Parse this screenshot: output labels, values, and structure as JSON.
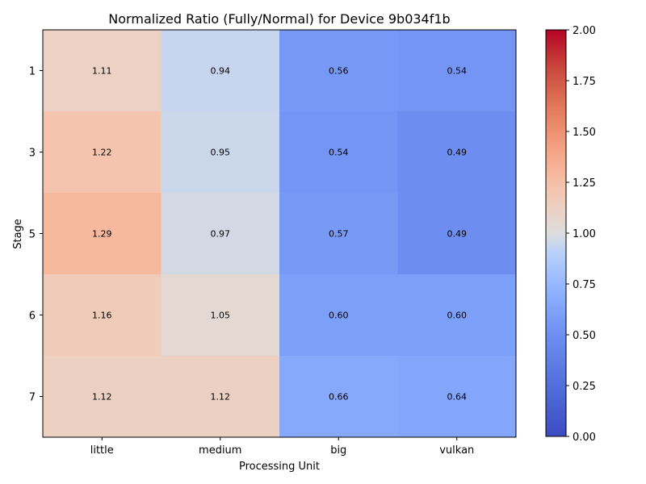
{
  "chart_data": {
    "type": "heatmap",
    "title": "Normalized Ratio (Fully/Normal) for Device 9b034f1b",
    "xlabel": "Processing Unit",
    "ylabel": "Stage",
    "x_categories": [
      "little",
      "medium",
      "big",
      "vulkan"
    ],
    "y_categories": [
      "1",
      "3",
      "5",
      "6",
      "7"
    ],
    "values": [
      [
        1.11,
        0.94,
        0.56,
        0.54
      ],
      [
        1.22,
        0.95,
        0.54,
        0.49
      ],
      [
        1.29,
        0.97,
        0.57,
        0.49
      ],
      [
        1.16,
        1.05,
        0.6,
        0.6
      ],
      [
        1.12,
        1.12,
        0.66,
        0.64
      ]
    ],
    "value_labels": [
      [
        "1.11",
        "0.94",
        "0.56",
        "0.54"
      ],
      [
        "1.22",
        "0.95",
        "0.54",
        "0.49"
      ],
      [
        "1.29",
        "0.97",
        "0.57",
        "0.49"
      ],
      [
        "1.16",
        "1.05",
        "0.60",
        "0.60"
      ],
      [
        "1.12",
        "1.12",
        "0.66",
        "0.64"
      ]
    ],
    "colorbar": {
      "colormap": "coolwarm",
      "vmin": 0.0,
      "vmax": 2.0,
      "ticks": [
        "0.00",
        "0.25",
        "0.50",
        "0.75",
        "1.00",
        "1.25",
        "1.50",
        "1.75",
        "2.00"
      ]
    }
  }
}
